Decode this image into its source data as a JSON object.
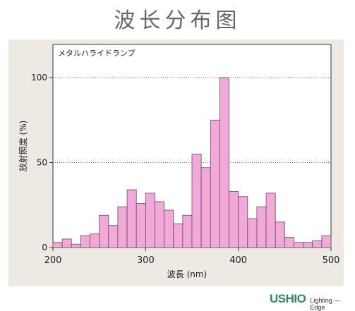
{
  "page_title": "波长分布图",
  "chart_data": {
    "type": "bar",
    "title": "メタルハライドランプ",
    "xlabel": "波長 (nm)",
    "ylabel": "放射照度 (%)",
    "xlim": [
      200,
      500
    ],
    "ylim": [
      0,
      100
    ],
    "xticks": [
      200,
      300,
      400,
      500
    ],
    "yticks": [
      0,
      50,
      100
    ],
    "grid": "horizontal dotted",
    "bin_width": 10,
    "bar_color": "#f2a8d8",
    "bar_edge_color": "#555555",
    "x": [
      200,
      210,
      220,
      230,
      240,
      250,
      260,
      270,
      280,
      290,
      300,
      310,
      320,
      330,
      340,
      350,
      360,
      370,
      380,
      390,
      400,
      410,
      420,
      430,
      440,
      450,
      460,
      470,
      480,
      490
    ],
    "values": [
      3,
      5,
      2,
      7,
      8,
      19,
      13,
      24,
      34,
      26,
      32,
      27,
      22,
      14,
      19,
      55,
      47,
      75,
      100,
      33,
      30,
      17,
      24,
      32,
      15,
      6,
      3,
      3,
      4,
      7
    ]
  },
  "logo": {
    "brand": "USHIO",
    "tagline": "Lighting — Edge"
  }
}
